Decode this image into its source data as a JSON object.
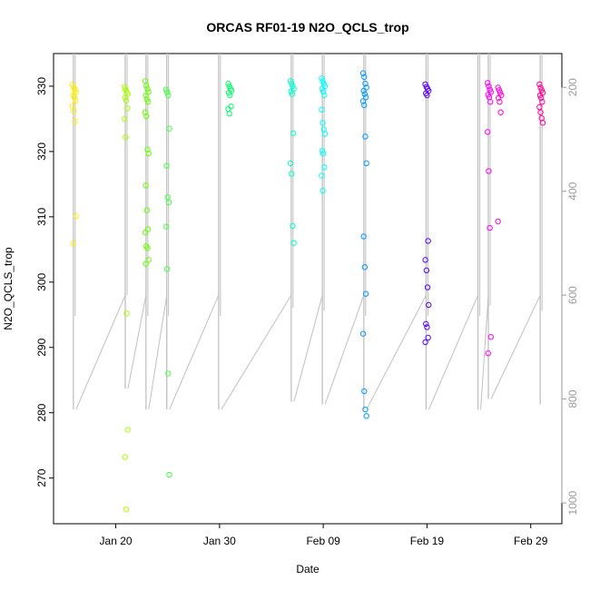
{
  "chart_data": {
    "type": "scatter",
    "title": "ORCAS RF01-19 N2O_QCLS_trop",
    "xlabel": "Date",
    "ylabel": "N2O_QCLS_trop",
    "xlim": [
      "2016-01-14",
      "2016-03-03"
    ],
    "ylim": [
      263.0,
      335.0
    ],
    "x_ticks": [
      {
        "date": "2016-01-20",
        "label": "Jan 20"
      },
      {
        "date": "2016-01-30",
        "label": "Jan 30"
      },
      {
        "date": "2016-02-09",
        "label": "Feb 09"
      },
      {
        "date": "2016-02-19",
        "label": "Feb 19"
      },
      {
        "date": "2016-02-29",
        "label": "Feb 29"
      }
    ],
    "y_ticks": [
      270,
      280,
      290,
      300,
      310,
      320,
      330
    ],
    "y2_axis": {
      "side": "right",
      "color": "#9a9a9a",
      "ticks": [
        200,
        400,
        600,
        800,
        1000
      ],
      "range": [
        1040,
        135
      ],
      "reversed": true
    },
    "marker": "open-circle",
    "background_series": {
      "color": "#c0c0c0",
      "description_visible": false,
      "flights": [
        {
          "date": "2016-01-16",
          "low": 820
        },
        {
          "date": "2016-01-21",
          "low": 780
        },
        {
          "date": "2016-01-23",
          "low": 820
        },
        {
          "date": "2016-01-25",
          "low": 820
        },
        {
          "date": "2016-01-30",
          "low": 820
        },
        {
          "date": "2016-02-06",
          "low": 805
        },
        {
          "date": "2016-02-09",
          "low": 810
        },
        {
          "date": "2016-02-13",
          "low": 820
        },
        {
          "date": "2016-02-19",
          "low": 820
        },
        {
          "date": "2016-02-24",
          "low": 820
        },
        {
          "date": "2016-02-25",
          "low": 800
        },
        {
          "date": "2016-03-01",
          "low": 810
        }
      ]
    },
    "series": [
      {
        "date": "2016-01-16",
        "color": "#ffee00",
        "values": [
          330.2,
          329.8,
          329.5,
          329.1,
          328.7,
          328.3,
          327.8,
          327.0,
          326.2,
          324.6,
          310.1,
          305.9
        ]
      },
      {
        "date": "2016-01-21",
        "color": "#aaff00",
        "values": [
          329.9,
          329.5,
          329.1,
          328.8,
          328.3,
          327.8,
          326.6,
          325.0,
          322.2,
          295.2,
          277.4,
          273.2,
          265.2
        ]
      },
      {
        "date": "2016-01-23",
        "color": "#66ff00",
        "values": [
          330.8,
          330.1,
          329.6,
          329.1,
          328.6,
          328.0,
          327.6,
          326.0,
          325.4,
          320.3,
          319.7,
          314.8,
          311.0,
          308.1,
          307.6,
          305.5,
          305.2,
          303.4,
          302.8
        ]
      },
      {
        "date": "2016-01-25",
        "color": "#44ff44",
        "values": [
          329.5,
          329.1,
          328.6,
          323.5,
          317.8,
          313.0,
          312.2,
          308.5,
          302.0,
          286.0,
          270.5
        ]
      },
      {
        "date": "2016-01-31",
        "color": "#00ff66",
        "values": [
          330.4,
          330.0,
          329.6,
          329.3,
          329.0,
          328.6,
          326.9,
          326.5,
          325.8
        ]
      },
      {
        "date": "2016-02-06",
        "color": "#00ffcc",
        "values": [
          330.8,
          330.4,
          330.0,
          329.6,
          329.2,
          328.8,
          322.8,
          318.2,
          316.6,
          308.6,
          306.0
        ]
      },
      {
        "date": "2016-02-09",
        "color": "#00ffff",
        "values": [
          331.2,
          330.8,
          330.4,
          330.0,
          329.6,
          329.2,
          328.6,
          326.4,
          324.4,
          323.4,
          322.7,
          320.1,
          319.7,
          317.6,
          316.3,
          314.0
        ]
      },
      {
        "date": "2016-02-13",
        "color": "#0099ff",
        "values": [
          332.0,
          331.4,
          330.4,
          329.8,
          329.3,
          328.8,
          328.3,
          327.7,
          327.1,
          322.3,
          318.2,
          307.0,
          302.3,
          298.2,
          292.1,
          283.3,
          280.5,
          279.5
        ]
      },
      {
        "date": "2016-02-19",
        "color": "#5500ff",
        "values": [
          330.3,
          329.9,
          329.6,
          329.3,
          328.9,
          328.6,
          306.3,
          303.4,
          301.8,
          299.2,
          296.5,
          293.6,
          293.1,
          291.5,
          290.8
        ]
      },
      {
        "date": "2016-02-25",
        "color": "#ff00ff",
        "values": [
          330.5,
          330.0,
          329.5,
          329.1,
          328.7,
          328.3,
          327.6,
          323.0,
          317.0,
          308.3,
          291.6,
          289.1
        ]
      },
      {
        "date": "2016-02-26",
        "color": "#ff00dd",
        "values": [
          329.8,
          329.4,
          329.0,
          328.6,
          328.2,
          327.6,
          326.0,
          309.3
        ]
      },
      {
        "date": "2016-03-01",
        "color": "#ff0099",
        "values": [
          330.3,
          329.8,
          329.4,
          329.0,
          328.6,
          328.2,
          327.6,
          326.8,
          326.0,
          325.1,
          324.4
        ]
      }
    ]
  }
}
